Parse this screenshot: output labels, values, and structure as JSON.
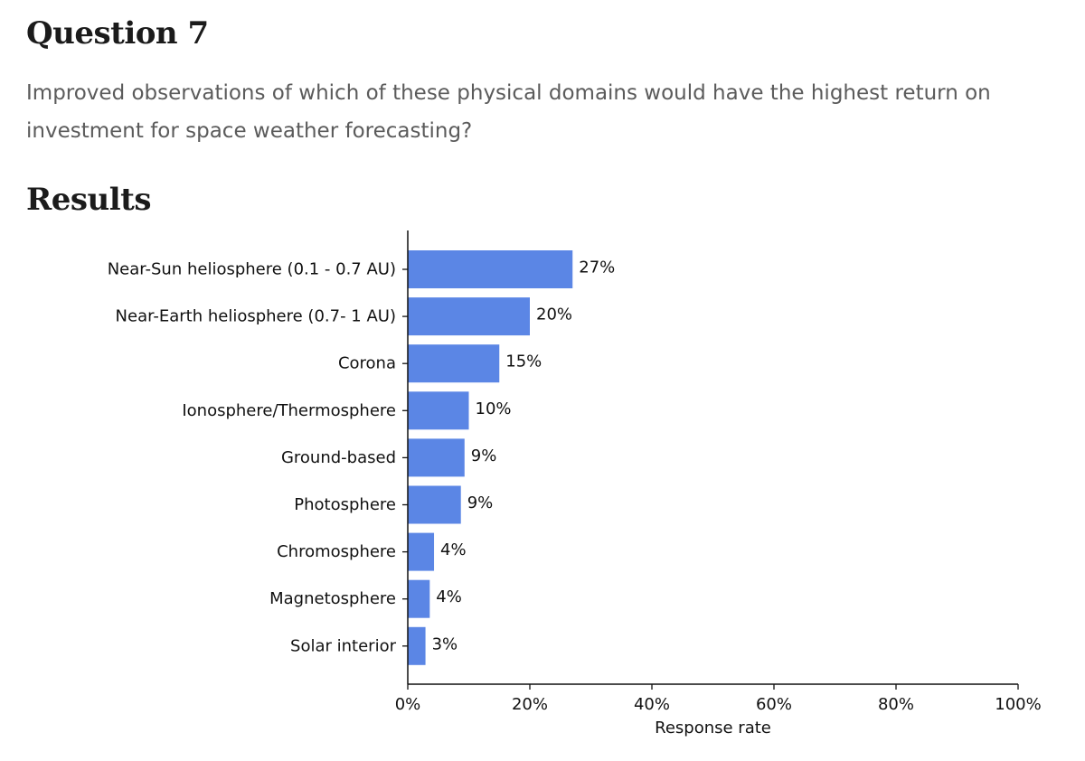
{
  "question": {
    "title": "Question 7",
    "text": "Improved observations of which of these physical domains would have the highest return on investment for space weather forecasting?"
  },
  "results": {
    "title": "Results"
  },
  "chart_data": {
    "type": "bar",
    "orientation": "horizontal",
    "categories": [
      "Near-Sun heliosphere (0.1 - 0.7 AU)",
      "Near-Earth heliosphere (0.7- 1 AU)",
      "Corona",
      "Ionosphere/Thermosphere",
      "Ground-based",
      "Photosphere",
      "Chromosphere",
      "Magnetosphere",
      "Solar interior"
    ],
    "values": [
      27,
      20,
      15,
      10,
      9.3,
      8.7,
      4.3,
      3.6,
      2.9
    ],
    "data_labels": [
      "27%",
      "20%",
      "15%",
      "10%",
      "9%",
      "9%",
      "4%",
      "4%",
      "3%"
    ],
    "xlabel": "Response rate",
    "ylabel": "",
    "xlim": [
      0,
      100
    ],
    "xticks": [
      0,
      20,
      40,
      60,
      80,
      100
    ],
    "xtick_labels": [
      "0%",
      "20%",
      "40%",
      "60%",
      "80%",
      "100%"
    ],
    "bar_color": "#5b86e5",
    "grid": false,
    "legend": "none"
  }
}
